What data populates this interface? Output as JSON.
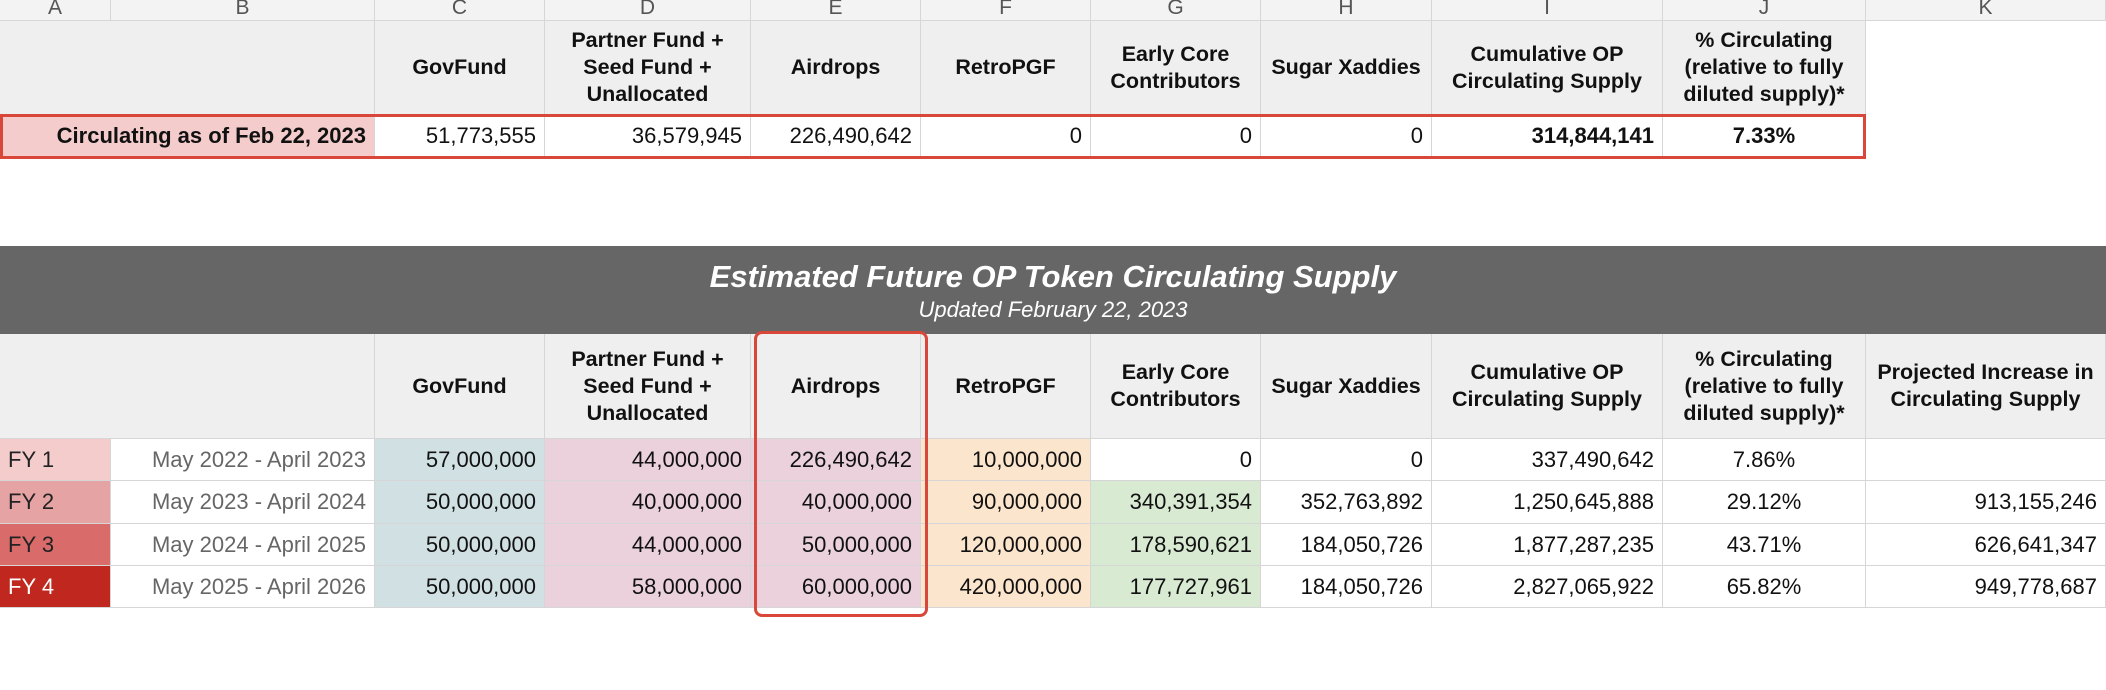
{
  "column_letters": [
    "A",
    "B",
    "C",
    "D",
    "E",
    "F",
    "G",
    "H",
    "I",
    "J",
    "K"
  ],
  "summary_table": {
    "headers": [
      "GovFund",
      "Partner Fund + Seed Fund + Unallocated",
      "Airdrops",
      "RetroPGF",
      "Early Core Contributors",
      "Sugar Xaddies",
      "Cumulative OP Circulating Supply",
      "% Circulating (relative to fully diluted supply)*"
    ],
    "row": {
      "label": "Circulating as of Feb 22, 2023",
      "values": [
        "51,773,555",
        "36,579,945",
        "226,490,642",
        "0",
        "0",
        "0",
        "314,844,141",
        "7.33%"
      ]
    }
  },
  "projection_table": {
    "title": "Estimated Future OP Token Circulating Supply",
    "subtitle": "Updated February 22, 2023",
    "headers": [
      "GovFund",
      "Partner Fund + Seed Fund + Unallocated",
      "Airdrops",
      "RetroPGF",
      "Early Core Contributors",
      "Sugar Xaddies",
      "Cumulative OP Circulating Supply",
      "% Circulating (relative to fully diluted supply)*",
      "Projected Increase in Circulating Supply"
    ],
    "rows": [
      {
        "fy": "FY 1",
        "period": "May 2022 - April 2023",
        "values": [
          "57,000,000",
          "44,000,000",
          "226,490,642",
          "10,000,000",
          "0",
          "0",
          "337,490,642",
          "7.86%",
          null
        ]
      },
      {
        "fy": "FY 2",
        "period": "May 2023 - April 2024",
        "values": [
          "50,000,000",
          "40,000,000",
          "40,000,000",
          "90,000,000",
          "340,391,354",
          "352,763,892",
          "1,250,645,888",
          "29.12%",
          "913,155,246"
        ]
      },
      {
        "fy": "FY 3",
        "period": "May 2024 - April 2025",
        "values": [
          "50,000,000",
          "44,000,000",
          "50,000,000",
          "120,000,000",
          "178,590,621",
          "184,050,726",
          "1,877,287,235",
          "43.71%",
          "626,641,347"
        ]
      },
      {
        "fy": "FY 4",
        "period": "May 2025 - April 2026",
        "values": [
          "50,000,000",
          "58,000,000",
          "60,000,000",
          "420,000,000",
          "177,727,961",
          "184,050,726",
          "2,827,065,922",
          "65.82%",
          "949,778,687"
        ]
      }
    ]
  }
}
